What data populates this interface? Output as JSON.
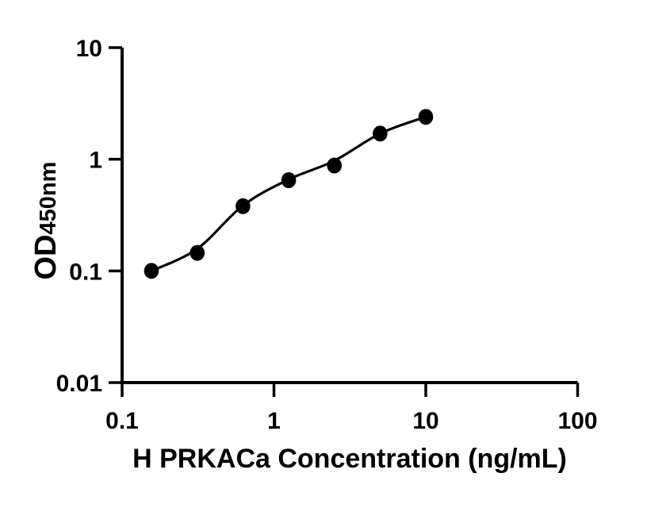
{
  "chart": {
    "ylabel_main": "OD",
    "ylabel_sub": "450nm",
    "xlabel": "H PRKACa Concentration (ng/mL)"
  },
  "chart_data": {
    "type": "scatter",
    "title": "",
    "xlabel": "H PRKACa Concentration (ng/mL)",
    "ylabel": "OD450nm",
    "x_scale": "log",
    "y_scale": "log",
    "xlim": [
      0.1,
      100
    ],
    "ylim": [
      0.01,
      10
    ],
    "grid": false,
    "legend": false,
    "x_ticks": {
      "values": [
        0.1,
        1,
        10,
        100
      ],
      "labels": [
        "0.1",
        "1",
        "10",
        "100"
      ]
    },
    "y_ticks": {
      "values": [
        10,
        1,
        0.1,
        0.01
      ],
      "labels": [
        "10",
        "1",
        "0.1",
        "0.01"
      ]
    },
    "colors": {
      "foreground": "#000000",
      "background": "#ffffff"
    },
    "series": [
      {
        "name": "standard-points",
        "marker": "filled-circle",
        "color": "#000000",
        "x": [
          0.156,
          0.3125,
          0.625,
          1.25,
          2.5,
          5,
          10
        ],
        "y": [
          0.1,
          0.145,
          0.38,
          0.65,
          0.88,
          1.7,
          2.4
        ]
      }
    ],
    "fit_curve": {
      "name": "fitted-standard-curve",
      "color": "#000000",
      "x": [
        0.156,
        0.3125,
        0.625,
        1.25,
        2.5,
        5,
        10
      ],
      "y": [
        0.1,
        0.158,
        0.385,
        0.66,
        0.97,
        1.7,
        2.4
      ]
    }
  }
}
